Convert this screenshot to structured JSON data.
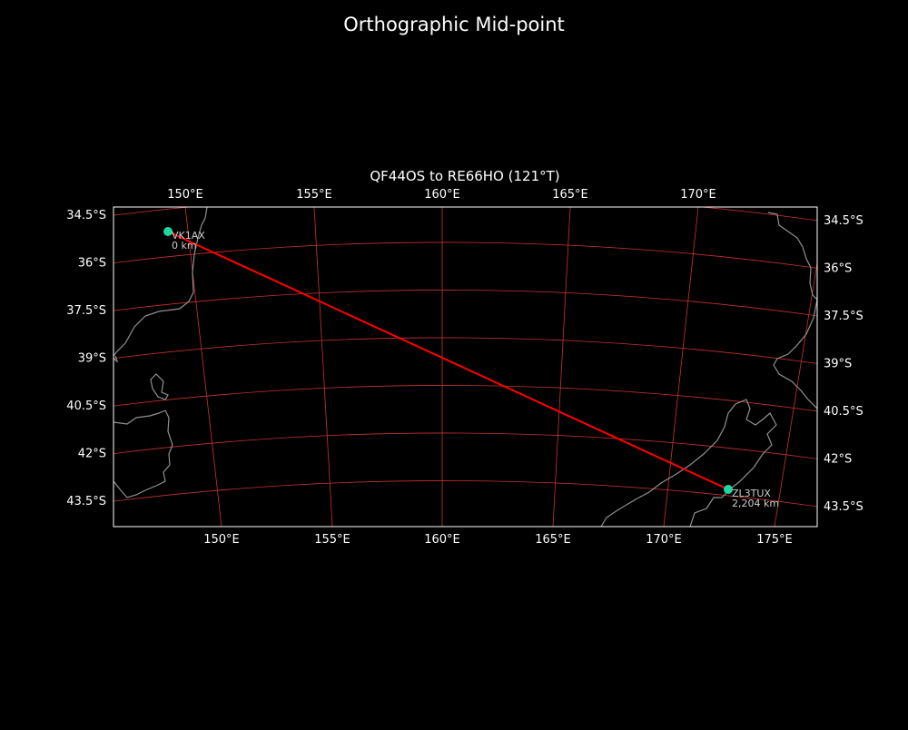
{
  "title": "Orthographic Mid-point",
  "subtitle": "QF44OS to RE66HO (121°T)",
  "colors": {
    "background": "#000000",
    "grid": "#c83232",
    "coast": "#909090",
    "path": "#ff0000",
    "marker": "#1fd8a0",
    "frame": "#ffffff"
  },
  "lat_labels": [
    "34.5°S",
    "36°S",
    "37.5°S",
    "39°S",
    "40.5°S",
    "42°S",
    "43.5°S"
  ],
  "lon_labels_top": [
    "150°E",
    "155°E",
    "160°E",
    "165°E",
    "170°E"
  ],
  "lon_labels_bottom": [
    "150°E",
    "155°E",
    "160°E",
    "165°E",
    "170°E",
    "175°E"
  ],
  "stations": [
    {
      "call": "VK1AX",
      "distance": "0 km"
    },
    {
      "call": "ZL3TUX",
      "distance": "2,204 km"
    }
  ]
}
